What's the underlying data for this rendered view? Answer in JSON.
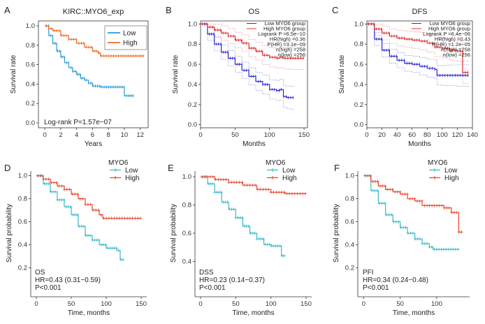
{
  "figure": {
    "type": "multi-panel Kaplan-Meier survival curves"
  },
  "chart_data": [
    {
      "panel": "A",
      "type": "line",
      "title": "KIRC::MYO6_exp",
      "xlabel": "Years",
      "ylabel": "Survival rate",
      "xlim": [
        -0.8,
        13
      ],
      "ylim": [
        -0.05,
        1.05
      ],
      "xticks": [
        0,
        2,
        4,
        6,
        8,
        10,
        12
      ],
      "yticks": [
        0.0,
        0.2,
        0.4,
        0.6,
        0.8,
        1.0
      ],
      "ytick_labels": [
        "0.0",
        "0.2",
        "0.4",
        "0.6",
        "0.8",
        "1.0"
      ],
      "legend": {
        "position": "top-right",
        "entries": [
          {
            "name": "Low",
            "color": "#2a9ad4"
          },
          {
            "name": "High",
            "color": "#f06a22"
          }
        ]
      },
      "annotation": "Log-rank P=1.57e−07",
      "series": [
        {
          "name": "Low",
          "color": "#2a9ad4",
          "x": [
            0,
            0.5,
            1,
            1.5,
            2,
            2.5,
            3,
            3.5,
            4,
            4.5,
            5,
            5.5,
            6,
            6.5,
            7,
            8,
            9.8,
            10,
            11.2
          ],
          "y": [
            1.0,
            0.9,
            0.82,
            0.74,
            0.68,
            0.62,
            0.57,
            0.53,
            0.5,
            0.46,
            0.44,
            0.41,
            0.38,
            0.38,
            0.37,
            0.37,
            0.37,
            0.28,
            0.28
          ]
        },
        {
          "name": "High",
          "color": "#f06a22",
          "x": [
            0,
            0.5,
            1,
            2,
            3,
            4,
            5,
            6,
            6.7,
            7,
            8,
            10,
            12.5
          ],
          "y": [
            1.0,
            0.97,
            0.95,
            0.9,
            0.86,
            0.82,
            0.78,
            0.74,
            0.72,
            0.69,
            0.69,
            0.69,
            0.69
          ]
        }
      ]
    },
    {
      "panel": "B",
      "type": "line",
      "title": "OS",
      "xlabel": "Months",
      "ylabel": "Survival rate",
      "xlim": [
        0,
        155
      ],
      "ylim": [
        -0.03,
        1.03
      ],
      "xticks": [
        0,
        50,
        100,
        150
      ],
      "yticks": [
        0.0,
        0.2,
        0.4,
        0.6,
        0.8,
        1.0
      ],
      "ytick_labels": [
        "0.0",
        "0.2",
        "0.4",
        "0.6",
        "0.8",
        "1.0"
      ],
      "legend": {
        "position": "top-right",
        "entries": [
          {
            "name": "Low MYO6 group",
            "color": "#2a2ad6"
          },
          {
            "name": "High MYO6 group",
            "color": "#e03030"
          }
        ],
        "stats": [
          "Logrank P =6.5e−10",
          "HR(high) =0.36",
          "P(HR) =3.1e−09",
          "n(high) =258",
          "n(low) =256"
        ]
      },
      "series": [
        {
          "name": "Low MYO6 group",
          "color": "#2a2ad6",
          "x": [
            0,
            10,
            20,
            30,
            40,
            50,
            60,
            70,
            80,
            90,
            100,
            110,
            115,
            120,
            125,
            130,
            135
          ],
          "y": [
            1.0,
            0.9,
            0.8,
            0.72,
            0.66,
            0.6,
            0.54,
            0.48,
            0.43,
            0.4,
            0.35,
            0.34,
            0.35,
            0.28,
            0.27,
            0.27,
            0.27
          ]
        },
        {
          "name": "High MYO6 group",
          "color": "#e03030",
          "x": [
            0,
            10,
            20,
            30,
            40,
            50,
            60,
            70,
            80,
            90,
            100,
            110,
            115,
            120,
            130,
            150
          ],
          "y": [
            1.0,
            0.97,
            0.94,
            0.91,
            0.88,
            0.84,
            0.81,
            0.76,
            0.73,
            0.69,
            0.67,
            0.66,
            0.67,
            0.66,
            0.66,
            0.66
          ]
        }
      ]
    },
    {
      "panel": "C",
      "type": "line",
      "title": "DFS",
      "xlabel": "Months",
      "ylabel": "Survival rate",
      "xlim": [
        0,
        140
      ],
      "ylim": [
        -0.03,
        1.03
      ],
      "xticks": [
        0,
        20,
        40,
        60,
        80,
        100,
        120,
        140
      ],
      "yticks": [
        0.0,
        0.2,
        0.4,
        0.6,
        0.8,
        1.0
      ],
      "ytick_labels": [
        "0.0",
        "0.2",
        "0.4",
        "0.6",
        "0.8",
        "1.0"
      ],
      "legend": {
        "position": "top-right",
        "entries": [
          {
            "name": "Low MYO6 group",
            "color": "#2a2ad6"
          },
          {
            "name": "High MYO6 group",
            "color": "#e03030"
          }
        ],
        "stats": [
          "Logrank P =6.4e−06",
          "HR(high) =0.43",
          "P(HR) =1.2e−05",
          "n(high) =258",
          "n(low) =256"
        ]
      },
      "series": [
        {
          "name": "Low MYO6 group",
          "color": "#2a2ad6",
          "x": [
            0,
            10,
            20,
            30,
            40,
            50,
            60,
            70,
            80,
            90,
            93,
            100,
            110,
            120,
            135
          ],
          "y": [
            1.0,
            0.85,
            0.74,
            0.68,
            0.64,
            0.61,
            0.6,
            0.58,
            0.56,
            0.55,
            0.49,
            0.49,
            0.49,
            0.49,
            0.49
          ]
        },
        {
          "name": "High MYO6 group",
          "color": "#e03030",
          "x": [
            0,
            10,
            20,
            30,
            40,
            50,
            60,
            70,
            80,
            90,
            100,
            110,
            120,
            125,
            127,
            135
          ],
          "y": [
            1.0,
            0.95,
            0.91,
            0.88,
            0.86,
            0.85,
            0.84,
            0.83,
            0.81,
            0.77,
            0.76,
            0.74,
            0.73,
            0.73,
            0.52,
            0.52
          ]
        }
      ]
    },
    {
      "panel": "D",
      "type": "line",
      "title": "",
      "xlabel": "Time, months",
      "ylabel": "Survival probability",
      "xlim": [
        -8,
        158
      ],
      "ylim": [
        -0.04,
        1.04
      ],
      "xticks": [
        0,
        50,
        100,
        150
      ],
      "yticks": [
        0.2,
        0.4,
        0.6,
        0.8,
        1.0
      ],
      "ytick_labels": [
        "0.2",
        "0.4",
        "0.6",
        "0.8",
        "1.0"
      ],
      "legend": {
        "position": "top-right",
        "title": "MYO6",
        "entries": [
          {
            "name": "Low",
            "color": "#3cb8c8"
          },
          {
            "name": "High",
            "color": "#e8472e"
          }
        ]
      },
      "annotation_lines": [
        "OS",
        "HR=0.43 (0.31−0.59)",
        "P<0.001"
      ],
      "series": [
        {
          "name": "Low",
          "color": "#3cb8c8",
          "x": [
            0,
            10,
            20,
            30,
            40,
            50,
            60,
            70,
            80,
            90,
            100,
            110,
            115,
            120,
            125
          ],
          "y": [
            1.0,
            0.93,
            0.86,
            0.79,
            0.73,
            0.66,
            0.56,
            0.48,
            0.44,
            0.4,
            0.37,
            0.37,
            0.35,
            0.27,
            0.27
          ]
        },
        {
          "name": "High",
          "color": "#e8472e",
          "x": [
            0,
            10,
            20,
            30,
            40,
            50,
            60,
            70,
            80,
            90,
            95,
            110,
            130,
            150
          ],
          "y": [
            1.0,
            0.97,
            0.94,
            0.91,
            0.88,
            0.84,
            0.8,
            0.75,
            0.7,
            0.66,
            0.63,
            0.63,
            0.63,
            0.63
          ]
        }
      ]
    },
    {
      "panel": "E",
      "type": "line",
      "title": "",
      "xlabel": "Time, months",
      "ylabel": "Survival probability",
      "xlim": [
        -8,
        158
      ],
      "ylim": [
        0.16,
        1.04
      ],
      "xticks": [
        0,
        50,
        100,
        150
      ],
      "yticks": [
        0.4,
        0.6,
        0.8,
        1.0
      ],
      "ytick_labels": [
        "0.4",
        "0.6",
        "0.8",
        "1.0"
      ],
      "legend": {
        "position": "top-right",
        "title": "MYO6",
        "entries": [
          {
            "name": "Low",
            "color": "#3cb8c8"
          },
          {
            "name": "High",
            "color": "#e8472e"
          }
        ]
      },
      "annotation_lines": [
        "DSS",
        "HR=0.23 (0.14−0.37)",
        "P<0.001"
      ],
      "series": [
        {
          "name": "Low",
          "color": "#3cb8c8",
          "x": [
            0,
            10,
            20,
            30,
            40,
            50,
            60,
            70,
            80,
            90,
            100,
            110,
            115,
            120
          ],
          "y": [
            1.0,
            0.95,
            0.89,
            0.82,
            0.77,
            0.71,
            0.65,
            0.6,
            0.56,
            0.52,
            0.51,
            0.51,
            0.44,
            0.44
          ]
        },
        {
          "name": "High",
          "color": "#e8472e",
          "x": [
            0,
            20,
            40,
            60,
            80,
            100,
            120,
            140,
            150
          ],
          "y": [
            1.0,
            0.98,
            0.96,
            0.94,
            0.91,
            0.89,
            0.88,
            0.88,
            0.88
          ]
        }
      ]
    },
    {
      "panel": "F",
      "type": "line",
      "title": "",
      "xlabel": "Time, months",
      "ylabel": "Survival probability",
      "xlim": [
        -8,
        145
      ],
      "ylim": [
        -0.04,
        1.04
      ],
      "xticks": [
        0,
        50,
        100
      ],
      "yticks": [
        0.2,
        0.4,
        0.6,
        0.8,
        1.0
      ],
      "ytick_labels": [
        "0.2",
        "0.4",
        "0.6",
        "0.8",
        "1.0"
      ],
      "legend": {
        "position": "top-right",
        "title": "MYO6",
        "entries": [
          {
            "name": "Low",
            "color": "#3cb8c8"
          },
          {
            "name": "High",
            "color": "#e8472e"
          }
        ]
      },
      "annotation_lines": [
        "PFI",
        "HR=0.34 (0.24−0.48)",
        "P<0.001"
      ],
      "series": [
        {
          "name": "Low",
          "color": "#3cb8c8",
          "x": [
            0,
            10,
            20,
            30,
            40,
            50,
            60,
            70,
            80,
            90,
            95,
            110,
            130
          ],
          "y": [
            1.0,
            0.87,
            0.76,
            0.66,
            0.6,
            0.55,
            0.5,
            0.45,
            0.41,
            0.38,
            0.36,
            0.36,
            0.36
          ]
        },
        {
          "name": "High",
          "color": "#e8472e",
          "x": [
            0,
            10,
            20,
            30,
            40,
            50,
            60,
            70,
            80,
            90,
            100,
            110,
            120,
            125,
            130,
            135
          ],
          "y": [
            1.0,
            0.95,
            0.91,
            0.88,
            0.86,
            0.84,
            0.8,
            0.78,
            0.74,
            0.74,
            0.74,
            0.72,
            0.68,
            0.68,
            0.51,
            0.51
          ]
        }
      ]
    }
  ]
}
